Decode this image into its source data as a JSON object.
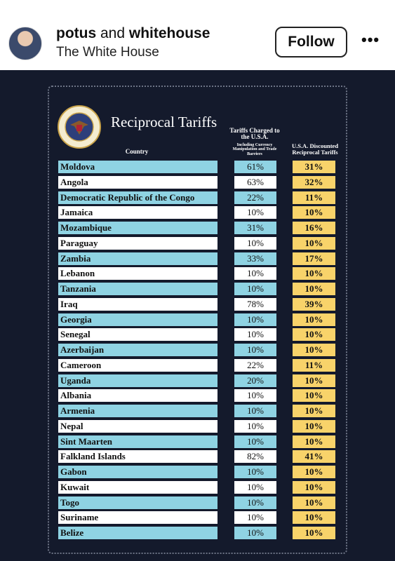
{
  "header": {
    "user": [
      "potus",
      "and",
      "whitehouse"
    ],
    "subtitle": "The White House",
    "button": "Follow",
    "more": "•••"
  },
  "post": {
    "title": "Reciprocal Tariffs",
    "columns": [
      "Country",
      "Tariffs Charged to the U.S.A.",
      "Including Currency Manipulation and Trade Barriers",
      "U.S.A. Discounted Reciprocal Tariffs"
    ],
    "rows": [
      [
        "Moldova",
        "61%",
        "31%"
      ],
      [
        "Angola",
        "63%",
        "32%"
      ],
      [
        "Democratic Republic of the Congo",
        "22%",
        "11%"
      ],
      [
        "Jamaica",
        "10%",
        "10%"
      ],
      [
        "Mozambique",
        "31%",
        "16%"
      ],
      [
        "Paraguay",
        "10%",
        "10%"
      ],
      [
        "Zambia",
        "33%",
        "17%"
      ],
      [
        "Lebanon",
        "10%",
        "10%"
      ],
      [
        "Tanzania",
        "10%",
        "10%"
      ],
      [
        "Iraq",
        "78%",
        "39%"
      ],
      [
        "Georgia",
        "10%",
        "10%"
      ],
      [
        "Senegal",
        "10%",
        "10%"
      ],
      [
        "Azerbaijan",
        "10%",
        "10%"
      ],
      [
        "Cameroon",
        "22%",
        "11%"
      ],
      [
        "Uganda",
        "20%",
        "10%"
      ],
      [
        "Albania",
        "10%",
        "10%"
      ],
      [
        "Armenia",
        "10%",
        "10%"
      ],
      [
        "Nepal",
        "10%",
        "10%"
      ],
      [
        "Sint Maarten",
        "10%",
        "10%"
      ],
      [
        "Falkland Islands",
        "82%",
        "41%"
      ],
      [
        "Gabon",
        "10%",
        "10%"
      ],
      [
        "Kuwait",
        "10%",
        "10%"
      ],
      [
        "Togo",
        "10%",
        "10%"
      ],
      [
        "Suriname",
        "10%",
        "10%"
      ],
      [
        "Belize",
        "10%",
        "10%"
      ]
    ]
  }
}
